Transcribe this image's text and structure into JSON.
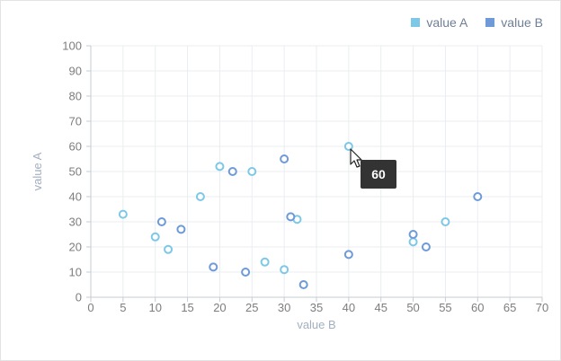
{
  "colors": {
    "series_a": "#7dc8e7",
    "series_b": "#6e9ad8",
    "grid": "#e9edf2",
    "axis": "#c7ccd3",
    "tooltip_bg": "#333333"
  },
  "tooltip": {
    "value": "60"
  },
  "chart_data": {
    "type": "scatter",
    "title": "",
    "xlabel": "value B",
    "ylabel": "value A",
    "xlim": [
      0,
      70
    ],
    "ylim": [
      0,
      100
    ],
    "xticks": [
      "0",
      "5",
      "10",
      "15",
      "20",
      "25",
      "30",
      "35",
      "40",
      "45",
      "50",
      "55",
      "60",
      "65",
      "70"
    ],
    "yticks": [
      "0",
      "10",
      "20",
      "30",
      "40",
      "50",
      "60",
      "70",
      "80",
      "90",
      "100"
    ],
    "grid": true,
    "legend": "top-right",
    "series": [
      {
        "name": "value A",
        "color": "#7dc8e7",
        "points": [
          [
            5,
            33
          ],
          [
            10,
            24
          ],
          [
            12,
            19
          ],
          [
            17,
            40
          ],
          [
            20,
            52
          ],
          [
            25,
            50
          ],
          [
            27,
            14
          ],
          [
            30,
            11
          ],
          [
            32,
            31
          ],
          [
            40,
            60
          ],
          [
            50,
            22
          ],
          [
            55,
            30
          ]
        ]
      },
      {
        "name": "value B",
        "color": "#6e9ad8",
        "points": [
          [
            11,
            30
          ],
          [
            14,
            27
          ],
          [
            19,
            12
          ],
          [
            22,
            50
          ],
          [
            24,
            10
          ],
          [
            30,
            55
          ],
          [
            31,
            32
          ],
          [
            33,
            5
          ],
          [
            40,
            17
          ],
          [
            50,
            25
          ],
          [
            52,
            20
          ],
          [
            60,
            40
          ]
        ]
      }
    ]
  }
}
